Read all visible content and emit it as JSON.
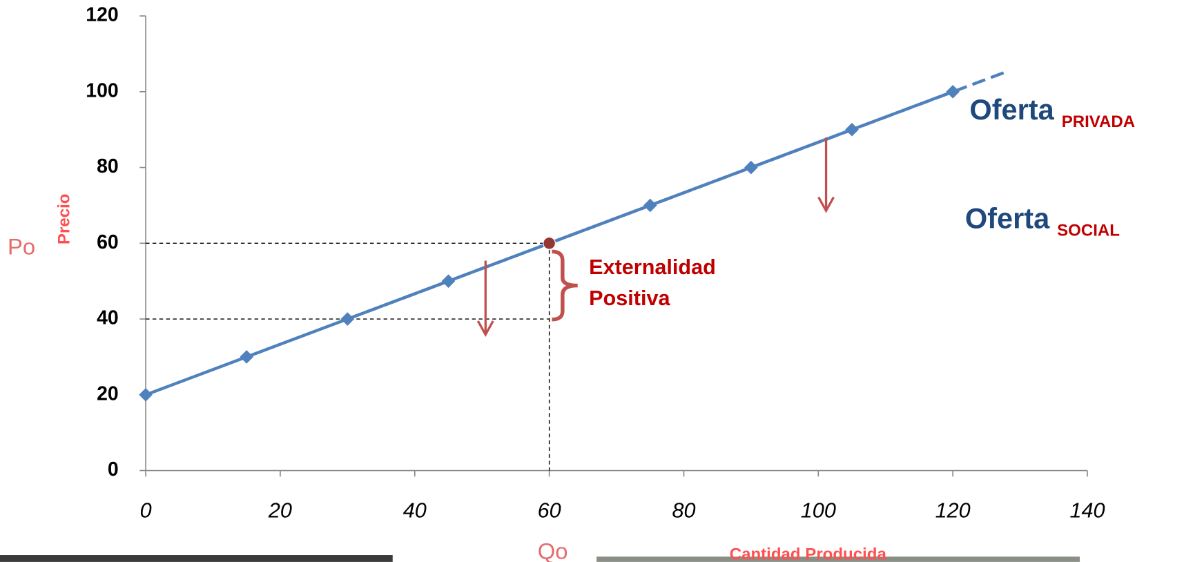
{
  "chart_data": {
    "type": "line",
    "y_label": "Precio",
    "x_label": "Cantidad Producida",
    "xlim": [
      0,
      140
    ],
    "ylim": [
      0,
      120
    ],
    "xticks": [
      0,
      20,
      40,
      60,
      80,
      100,
      120,
      140
    ],
    "yticks": [
      0,
      20,
      40,
      60,
      80,
      100,
      120
    ],
    "series": [
      {
        "color": "#4f81bd",
        "marker": "diamond",
        "dashed": false,
        "x": [
          0,
          15,
          30,
          45,
          60,
          75,
          90,
          105,
          120
        ],
        "y": [
          20,
          30,
          40,
          50,
          60,
          70,
          80,
          90,
          100
        ]
      },
      {
        "color": "#4f81bd",
        "marker": "none",
        "dashed": true,
        "x": [
          30,
          128
        ],
        "y": [
          40,
          105.3
        ]
      }
    ],
    "equilibrium": {
      "x": 60,
      "y": 60,
      "color": "#943634"
    },
    "lower_price": 40,
    "labels": [
      {
        "text": "Oferta",
        "sub": "PRIVADA"
      },
      {
        "text": "Oferta",
        "sub": "SOCIAL"
      }
    ],
    "annotations": {
      "price": "Po",
      "quantity": "Qo",
      "externality": [
        "Externalidad",
        "Positiva"
      ]
    }
  }
}
